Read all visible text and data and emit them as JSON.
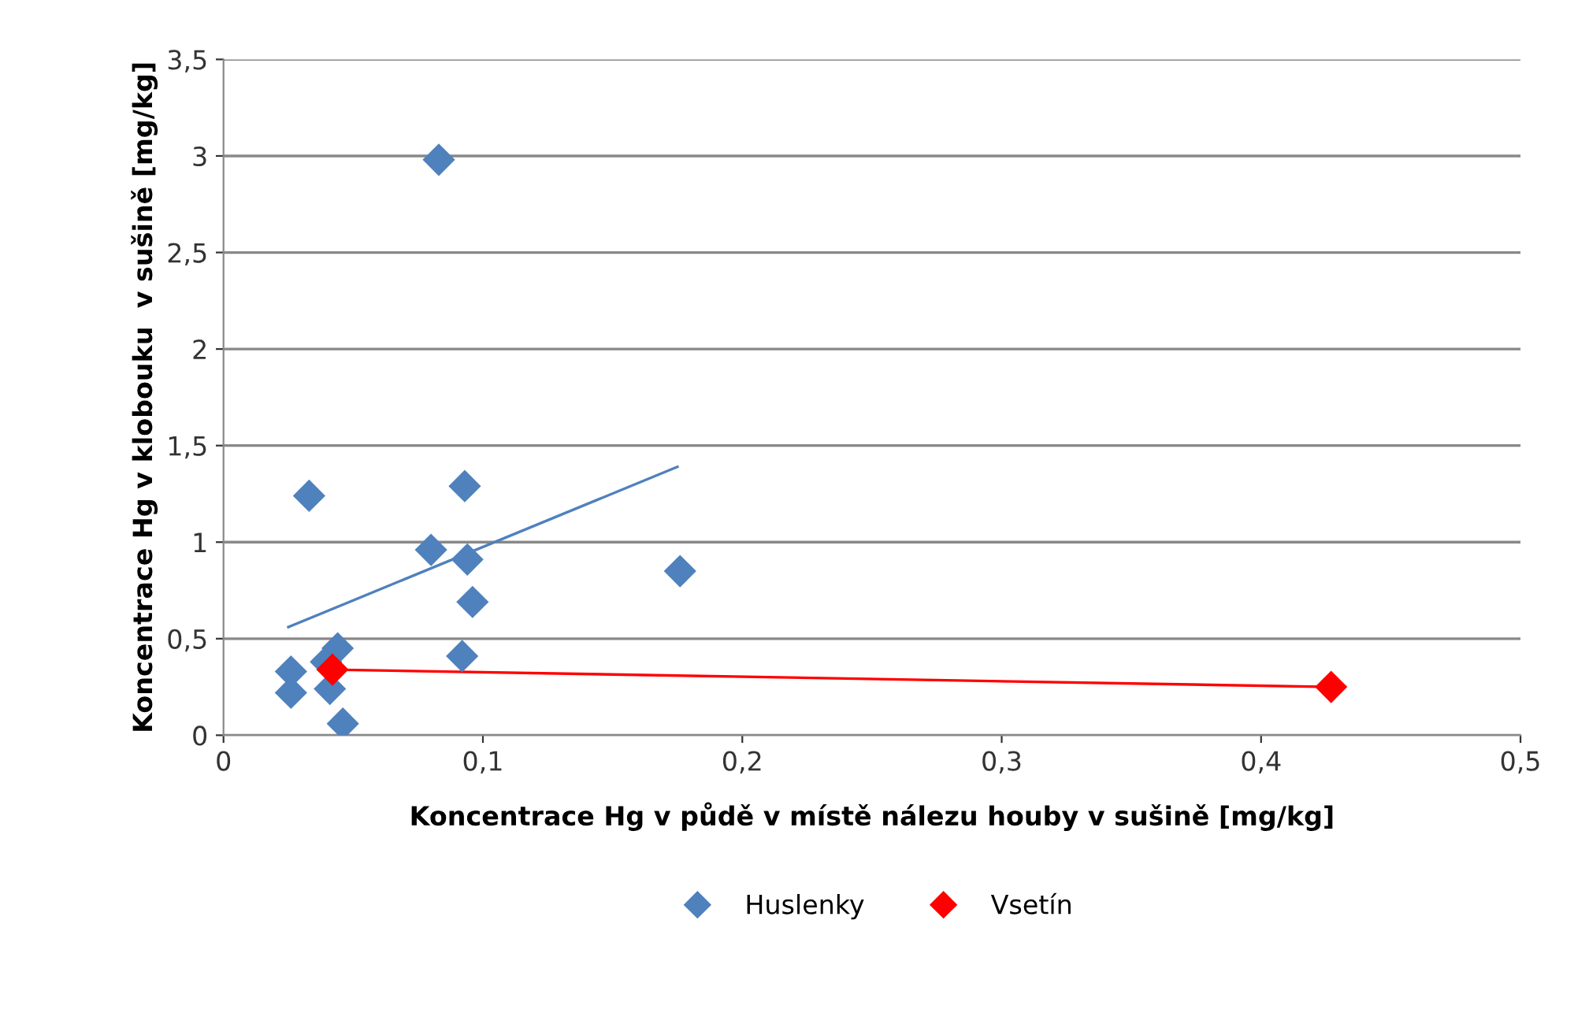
{
  "chart_data": {
    "type": "scatter",
    "xlabel": "Koncentrace Hg v půdě v místě nálezu houby v sušině [mg/kg]",
    "ylabel": "Koncentrace Hg v klobouku  v sušině [mg/kg]",
    "xlim": [
      0,
      0.5
    ],
    "ylim": [
      0,
      3.5
    ],
    "xticks": [
      {
        "value": 0,
        "label": "0"
      },
      {
        "value": 0.1,
        "label": "0,1"
      },
      {
        "value": 0.2,
        "label": "0,2"
      },
      {
        "value": 0.3,
        "label": "0,3"
      },
      {
        "value": 0.4,
        "label": "0,4"
      },
      {
        "value": 0.5,
        "label": "0,5"
      }
    ],
    "yticks": [
      {
        "value": 0,
        "label": "0"
      },
      {
        "value": 0.5,
        "label": "0,5"
      },
      {
        "value": 1,
        "label": "1"
      },
      {
        "value": 1.5,
        "label": "1,5"
      },
      {
        "value": 2,
        "label": "2"
      },
      {
        "value": 2.5,
        "label": "2,5"
      },
      {
        "value": 3,
        "label": "3"
      },
      {
        "value": 3.5,
        "label": "3,5"
      }
    ],
    "grid": "y",
    "legend": "bottom",
    "series": [
      {
        "name": "Huslenky",
        "marker": "diamond",
        "color": "#4f81bd",
        "x": [
          0.083,
          0.033,
          0.093,
          0.08,
          0.094,
          0.096,
          0.176,
          0.092,
          0.026,
          0.026,
          0.0395,
          0.044,
          0.041,
          0.046
        ],
        "values": [
          2.98,
          1.24,
          1.29,
          0.96,
          0.91,
          0.69,
          0.85,
          0.41,
          0.33,
          0.22,
          0.38,
          0.45,
          0.24,
          0.06
        ]
      },
      {
        "name": "Vsetín",
        "marker": "diamond",
        "color": "#ff0000",
        "x": [
          0.042,
          0.427
        ],
        "values": [
          0.34,
          0.25
        ]
      },
      {
        "type": "line",
        "marker": "none",
        "color": "#4f81bd",
        "x": [
          0.025,
          0.175
        ],
        "values": [
          0.56,
          1.39
        ]
      },
      {
        "type": "line",
        "marker": "none",
        "color": "#ff0000",
        "x": [
          0.042,
          0.427
        ],
        "values": [
          0.34,
          0.25
        ]
      }
    ]
  }
}
